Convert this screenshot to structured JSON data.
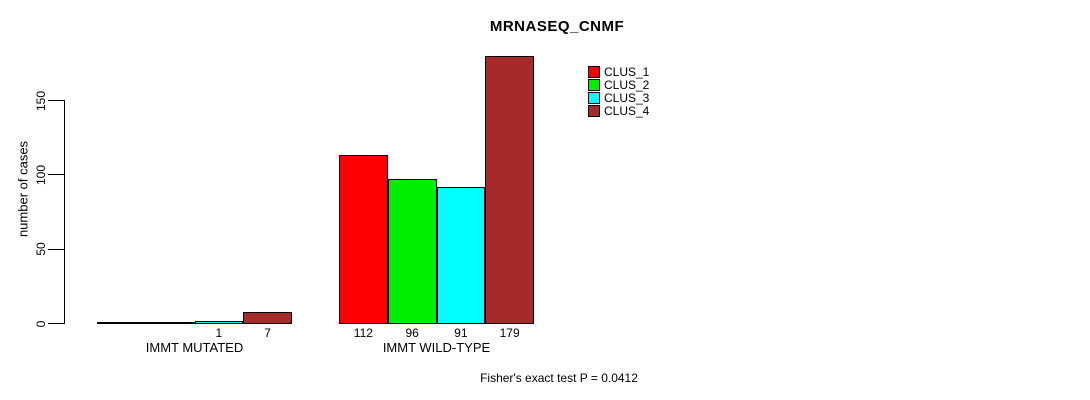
{
  "chart_data": {
    "type": "bar",
    "title": "MRNASEQ_CNMF",
    "ylabel": "number of cases",
    "xlabel": "",
    "yticks": [
      0,
      50,
      100,
      150
    ],
    "ylim": [
      0,
      150
    ],
    "grid": false,
    "legend_position": "top-right",
    "categories": [
      "IMMT MUTATED",
      "IMMT WILD-TYPE"
    ],
    "series": [
      {
        "name": "CLUS_1",
        "color": "#ff0000",
        "values": [
          0,
          112
        ]
      },
      {
        "name": "CLUS_2",
        "color": "#00ee00",
        "values": [
          0,
          96
        ]
      },
      {
        "name": "CLUS_3",
        "color": "#00ffff",
        "values": [
          1,
          91
        ]
      },
      {
        "name": "CLUS_4",
        "color": "#a52a2a",
        "values": [
          7,
          179
        ]
      }
    ],
    "bar_labels": [
      [
        null,
        null,
        "1",
        "7"
      ],
      [
        "112",
        "96",
        "91",
        "179"
      ]
    ],
    "legend": [
      {
        "label": "CLUS_1",
        "color": "#ff0000"
      },
      {
        "label": "CLUS_2",
        "color": "#00ee00"
      },
      {
        "label": "CLUS_3",
        "color": "#00ffff"
      },
      {
        "label": "CLUS_4",
        "color": "#a52a2a"
      }
    ],
    "footnote": "Fisher's exact test P = 0.0412"
  }
}
